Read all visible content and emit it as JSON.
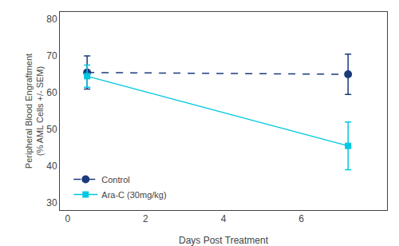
{
  "chart_data": {
    "type": "line",
    "xlabel": "Days Post Treatment",
    "ylabel": "Peripheral Blood Engraftment\n(% AML Cells +/- SEM)",
    "x": [
      0.5,
      7.2
    ],
    "series": [
      {
        "name": "Control",
        "color": "#1a3a7c",
        "values": [
          65.5,
          65.0
        ],
        "yerr": [
          4.5,
          5.5
        ],
        "marker": "circle",
        "line_style": "dashed"
      },
      {
        "name": "Ara-C (30mg/kg)",
        "color": "#00c8e0",
        "values": [
          64.5,
          45.5
        ],
        "yerr": [
          3.0,
          6.5
        ],
        "marker": "square",
        "line_style": "solid"
      }
    ],
    "xlim": [
      -0.2,
      8.2
    ],
    "xticks": [
      0,
      2,
      4,
      6
    ],
    "ylim": [
      28,
      82
    ],
    "yticks": [
      30,
      40,
      50,
      60,
      70,
      80
    ],
    "grid": false,
    "legend": "lower left"
  }
}
